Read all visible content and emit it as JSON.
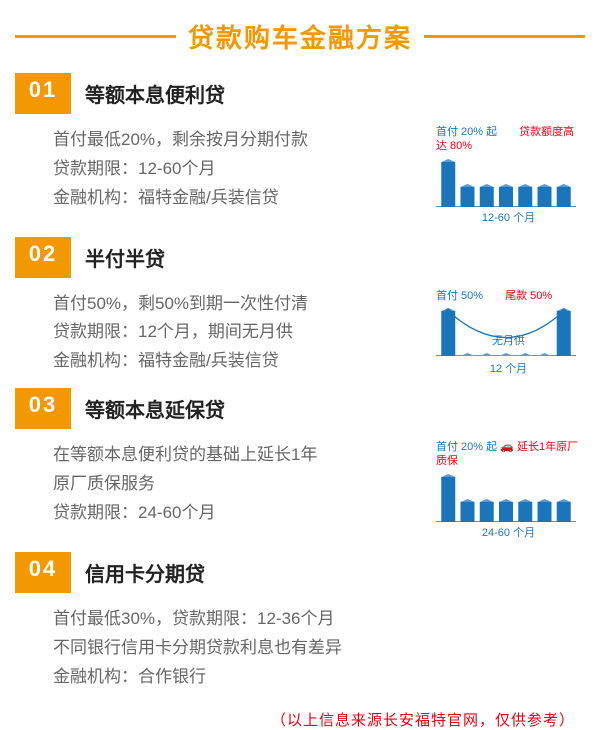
{
  "title": "贷款购车金融方案",
  "accent_color": "#f39800",
  "chart_color": "#1b75bb",
  "red_color": "#e60012",
  "text_color": "#666666",
  "sections": [
    {
      "num": "01",
      "head": "等额本息便利贷",
      "line1": "首付最低20%，剩余按月分期付款",
      "line2": "贷款期限：12-60个月",
      "line3": "金融机构：福特金融/兵装信贷",
      "chart": {
        "note_l": "首付 20% 起",
        "note_r": "贷款额度高达 80%",
        "bars": [
          45,
          20,
          20,
          20,
          20,
          20,
          20
        ],
        "xaxis": "12-60 个月"
      }
    },
    {
      "num": "02",
      "head": "半付半贷",
      "line1": "首付50%，剩50%到期一次性付清",
      "line2": "贷款期限：12个月，期间无月供",
      "line3": "金融机构：福特金融/兵装信贷",
      "chart": {
        "note_l": "首付 50%",
        "note_r": "尾款 50%",
        "bars": [
          45,
          0,
          0,
          0,
          0,
          0,
          45
        ],
        "mid": "无月供",
        "xaxis": "12 个月",
        "curve": true
      }
    },
    {
      "num": "03",
      "head": "等额本息延保贷",
      "line1": "在等额本息便利贷的基础上延长1年",
      "line2": "原厂质保服务",
      "line3": "贷款期限：24-60个月",
      "chart": {
        "note_l": "首付 20% 起",
        "note_r": "延长1年原厂质保",
        "bars": [
          45,
          20,
          20,
          20,
          20,
          20,
          20
        ],
        "xaxis": "24-60 个月",
        "car_icon": true
      }
    },
    {
      "num": "04",
      "head": "信用卡分期贷",
      "line1": "首付最低30%，贷款期限：12-36个月",
      "line2": "不同银行信用卡分期贷款利息也有差异",
      "line3": "金融机构：合作银行"
    }
  ],
  "footer": "（以上信息来源长安福特官网，仅供参考）"
}
